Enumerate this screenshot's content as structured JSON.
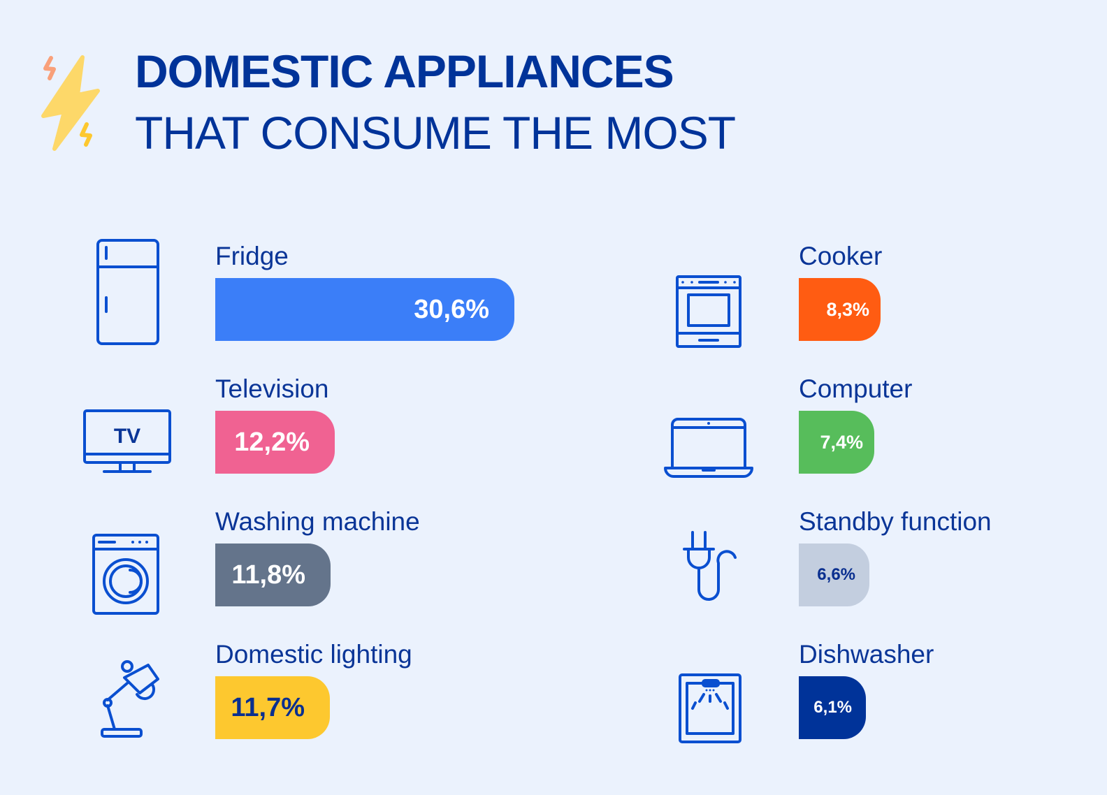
{
  "title": {
    "line1": "DOMESTIC APPLIANCES",
    "line2": "THAT CONSUME THE MOST"
  },
  "chart_data": {
    "type": "bar",
    "title": "DOMESTIC APPLIANCES THAT CONSUME THE MOST",
    "unit": "%",
    "items": [
      {
        "name": "Fridge",
        "value": 30.6,
        "label": "30,6%",
        "color": "#3b7ef8",
        "text_color": "#ffffff",
        "icon": "fridge-icon"
      },
      {
        "name": "Television",
        "value": 12.2,
        "label": "12,2%",
        "color": "#f06292",
        "text_color": "#ffffff",
        "icon": "tv-icon",
        "icon_text": "TV"
      },
      {
        "name": "Washing machine",
        "value": 11.8,
        "label": "11,8%",
        "color": "#64748b",
        "text_color": "#ffffff",
        "icon": "washing-machine-icon"
      },
      {
        "name": "Domestic lighting",
        "value": 11.7,
        "label": "11,7%",
        "color": "#fdc82f",
        "text_color": "#0a2f8f",
        "icon": "desk-lamp-icon"
      },
      {
        "name": "Cooker",
        "value": 8.3,
        "label": "8,3%",
        "color": "#ff5c12",
        "text_color": "#ffffff",
        "icon": "oven-icon"
      },
      {
        "name": "Computer",
        "value": 7.4,
        "label": "7,4%",
        "color": "#57bd5b",
        "text_color": "#ffffff",
        "icon": "laptop-icon"
      },
      {
        "name": "Standby function",
        "value": 6.6,
        "label": "6,6%",
        "color": "#c3cedf",
        "text_color": "#0a2f8f",
        "icon": "plug-icon"
      },
      {
        "name": "Dishwasher",
        "value": 6.1,
        "label": "6,1%",
        "color": "#003399",
        "text_color": "#ffffff",
        "icon": "dishwasher-icon"
      }
    ]
  }
}
